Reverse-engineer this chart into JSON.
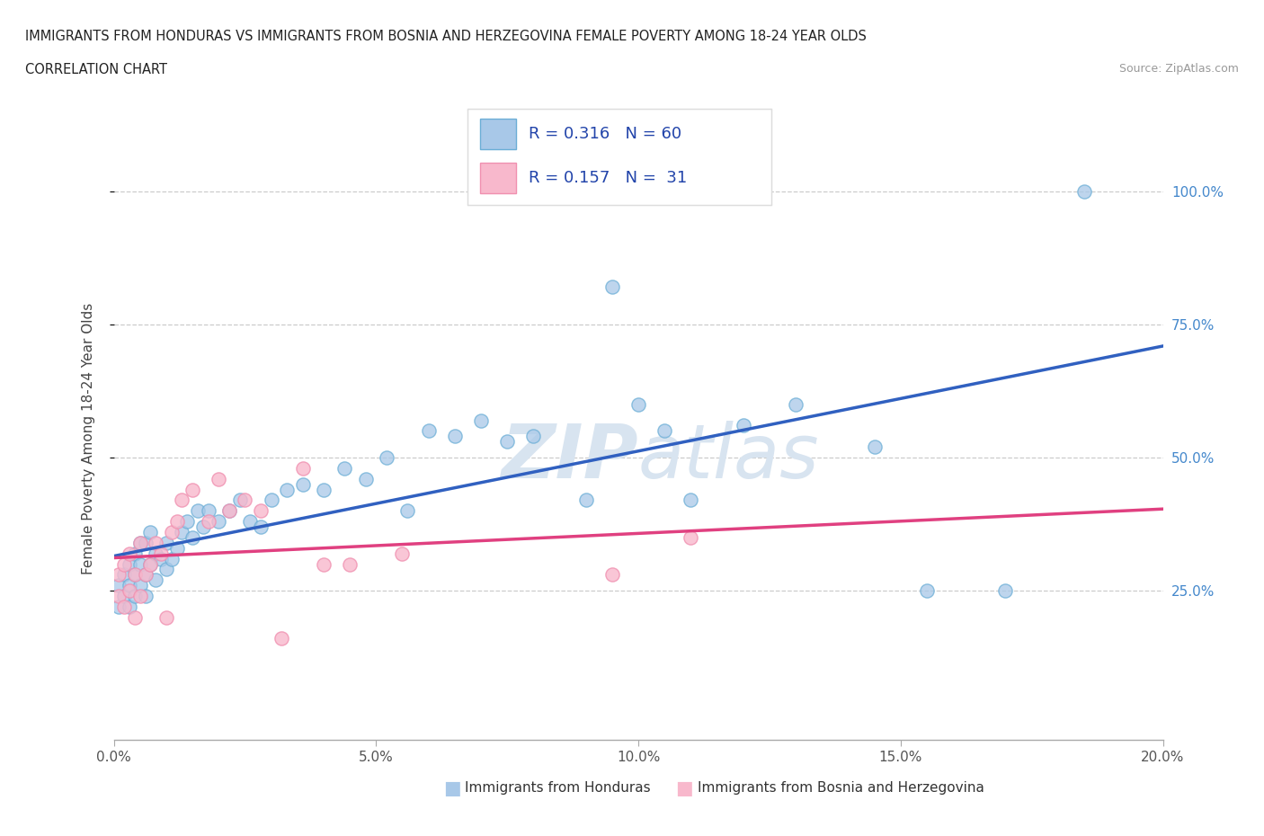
{
  "title_line1": "IMMIGRANTS FROM HONDURAS VS IMMIGRANTS FROM BOSNIA AND HERZEGOVINA FEMALE POVERTY AMONG 18-24 YEAR OLDS",
  "title_line2": "CORRELATION CHART",
  "source_text": "Source: ZipAtlas.com",
  "ylabel": "Female Poverty Among 18-24 Year Olds",
  "xlim": [
    0.0,
    0.2
  ],
  "ylim": [
    -0.03,
    1.1
  ],
  "xtick_labels": [
    "0.0%",
    "5.0%",
    "10.0%",
    "15.0%",
    "20.0%"
  ],
  "xtick_vals": [
    0.0,
    0.05,
    0.1,
    0.15,
    0.2
  ],
  "ytick_labels": [
    "25.0%",
    "50.0%",
    "75.0%",
    "100.0%"
  ],
  "ytick_vals": [
    0.25,
    0.5,
    0.75,
    1.0
  ],
  "blue_fill": "#a8c8e8",
  "blue_edge": "#6baed6",
  "pink_fill": "#f8b8cc",
  "pink_edge": "#f090b0",
  "blue_line_color": "#3060c0",
  "pink_line_color": "#e04080",
  "legend_text_color": "#2244aa",
  "watermark_color": "#d8e4f0",
  "r_blue": 0.316,
  "n_blue": 60,
  "r_pink": 0.157,
  "n_pink": 31,
  "blue_x": [
    0.001,
    0.001,
    0.002,
    0.002,
    0.003,
    0.003,
    0.003,
    0.004,
    0.004,
    0.004,
    0.005,
    0.005,
    0.005,
    0.006,
    0.006,
    0.006,
    0.007,
    0.007,
    0.008,
    0.008,
    0.009,
    0.01,
    0.01,
    0.011,
    0.012,
    0.013,
    0.014,
    0.015,
    0.016,
    0.017,
    0.018,
    0.02,
    0.022,
    0.024,
    0.026,
    0.028,
    0.03,
    0.033,
    0.036,
    0.04,
    0.044,
    0.048,
    0.052,
    0.056,
    0.06,
    0.065,
    0.07,
    0.075,
    0.08,
    0.09,
    0.095,
    0.1,
    0.105,
    0.11,
    0.12,
    0.13,
    0.145,
    0.155,
    0.17,
    0.185
  ],
  "blue_y": [
    0.22,
    0.26,
    0.24,
    0.28,
    0.22,
    0.26,
    0.3,
    0.24,
    0.28,
    0.32,
    0.26,
    0.3,
    0.34,
    0.24,
    0.28,
    0.34,
    0.3,
    0.36,
    0.27,
    0.32,
    0.31,
    0.29,
    0.34,
    0.31,
    0.33,
    0.36,
    0.38,
    0.35,
    0.4,
    0.37,
    0.4,
    0.38,
    0.4,
    0.42,
    0.38,
    0.37,
    0.42,
    0.44,
    0.45,
    0.44,
    0.48,
    0.46,
    0.5,
    0.4,
    0.55,
    0.54,
    0.57,
    0.53,
    0.54,
    0.42,
    0.82,
    0.6,
    0.55,
    0.42,
    0.56,
    0.6,
    0.52,
    0.25,
    0.25,
    1.0
  ],
  "pink_x": [
    0.001,
    0.001,
    0.002,
    0.002,
    0.003,
    0.003,
    0.004,
    0.004,
    0.005,
    0.005,
    0.006,
    0.007,
    0.008,
    0.009,
    0.01,
    0.011,
    0.012,
    0.013,
    0.015,
    0.018,
    0.02,
    0.022,
    0.025,
    0.028,
    0.032,
    0.036,
    0.04,
    0.045,
    0.055,
    0.095,
    0.11
  ],
  "pink_y": [
    0.24,
    0.28,
    0.22,
    0.3,
    0.25,
    0.32,
    0.2,
    0.28,
    0.24,
    0.34,
    0.28,
    0.3,
    0.34,
    0.32,
    0.2,
    0.36,
    0.38,
    0.42,
    0.44,
    0.38,
    0.46,
    0.4,
    0.42,
    0.4,
    0.16,
    0.48,
    0.3,
    0.3,
    0.32,
    0.28,
    0.35
  ],
  "background_color": "#ffffff",
  "grid_color": "#cccccc"
}
